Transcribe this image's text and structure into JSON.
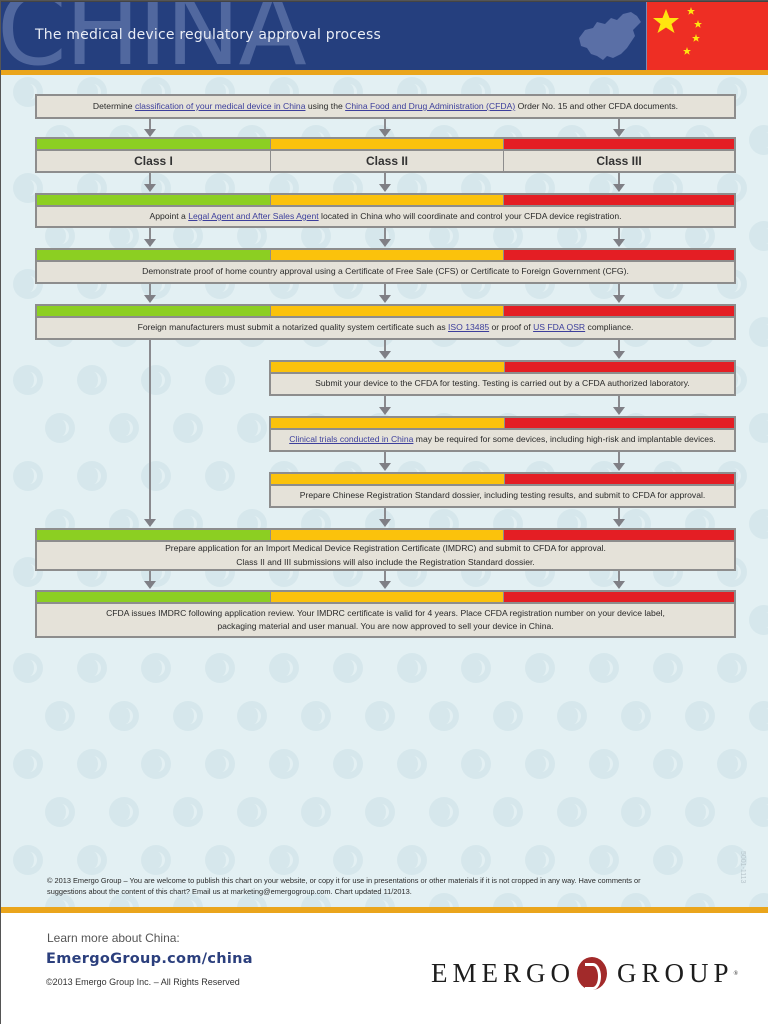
{
  "header": {
    "bigword": "CHINA",
    "title": "The medical device regulatory approval process"
  },
  "colors": {
    "header_bg": "#253f7e",
    "accent_orange": "#eaa51c",
    "class_i": "#8ccf22",
    "class_ii": "#fbc20c",
    "class_iii": "#e41e24",
    "flag_red": "#ee2e24",
    "flag_yellow": "#ffe50f",
    "link": "#3d3f9c"
  },
  "flow": {
    "step0": {
      "pre": "Determine ",
      "link1": "classification of your medical device in China",
      "mid": " using the ",
      "link2": "China Food and Drug Administration (CFDA)",
      "post": " Order No. 15 and other CFDA documents."
    },
    "classes": [
      "Class I",
      "Class II",
      "Class III"
    ],
    "step1": {
      "pre": "Appoint a ",
      "link": "Legal Agent and After Sales Agent",
      "post": " located in China who will coordinate and control your CFDA device registration."
    },
    "step2": {
      "text": "Demonstrate proof of home country approval using a Certificate of Free Sale (CFS) or Certificate to Foreign Government (CFG)."
    },
    "step3": {
      "pre": "Foreign manufacturers must submit a notarized quality system certificate such as ",
      "link1": "ISO 13485",
      "mid": " or proof of ",
      "link2": "US FDA QSR",
      "post": " compliance."
    },
    "step4": {
      "text": "Submit your device to the CFDA for testing. Testing is carried out by a CFDA authorized laboratory."
    },
    "step5": {
      "link": "Clinical trials conducted in China",
      "post": " may be required for some devices, including high-risk and implantable devices."
    },
    "step6": {
      "text": "Prepare Chinese Registration Standard dossier, including testing results, and submit to CFDA for approval."
    },
    "step7": {
      "line1": "Prepare application for an Import Medical Device Registration Certificate (IMDRC) and submit to CFDA for approval.",
      "line2": "Class II and III submissions will also include the Registration Standard dossier."
    },
    "step8": {
      "line1": "CFDA issues IMDRC following application review. Your IMDRC certificate is valid for 4 years. Place CFDA registration number on your device label,",
      "line2": "packaging material and user manual. You are now approved to sell your device in China."
    }
  },
  "fineprint": {
    "line1": "© 2013 Emergo Group – You are welcome to publish this chart on your website, or copy it for use in presentations or other materials if it is not cropped in any way. Have comments or",
    "line2": "suggestions about the content of this chart? Email us at marketing@emergogroup.com. Chart updated 11/2013.",
    "doc_id": "5001-1113"
  },
  "footer": {
    "learn_more": "Learn more about China:",
    "site": "EmergoGroup.com/china",
    "rights": "©2013 Emergo Group Inc. – All Rights Reserved",
    "logo_left": "EMERGO",
    "logo_right": "GROUP",
    "logo_tm": "®"
  }
}
